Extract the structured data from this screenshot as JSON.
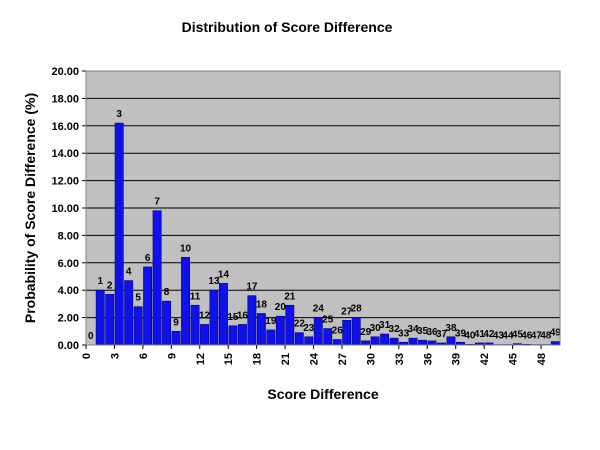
{
  "chart_data": {
    "type": "bar",
    "title": "Distribution of Score Difference",
    "xlabel": "Score Difference",
    "ylabel": "Probability of Score Difference (%)",
    "categories": [
      0,
      1,
      2,
      3,
      4,
      5,
      6,
      7,
      8,
      9,
      10,
      11,
      12,
      13,
      14,
      15,
      16,
      17,
      18,
      19,
      20,
      21,
      22,
      23,
      24,
      25,
      26,
      27,
      28,
      29,
      30,
      31,
      32,
      33,
      34,
      35,
      36,
      37,
      38,
      39,
      40,
      41,
      42,
      43,
      44,
      45,
      46,
      47,
      48,
      49
    ],
    "values": [
      0.0,
      4.0,
      3.7,
      16.2,
      4.7,
      2.8,
      5.7,
      9.8,
      3.2,
      1.0,
      6.4,
      2.9,
      1.5,
      4.0,
      4.5,
      1.4,
      1.5,
      3.6,
      2.3,
      1.1,
      2.1,
      2.9,
      0.9,
      0.6,
      2.0,
      1.2,
      0.4,
      1.8,
      2.0,
      0.3,
      0.6,
      0.8,
      0.5,
      0.2,
      0.5,
      0.35,
      0.3,
      0.15,
      0.6,
      0.2,
      0.05,
      0.15,
      0.15,
      0.03,
      0.03,
      0.1,
      0.05,
      0.03,
      0.03,
      0.25
    ],
    "data_labels": [
      "0",
      "1",
      "2",
      "3",
      "4",
      "5",
      "6",
      "7",
      "8",
      "9",
      "10",
      "11",
      "12",
      "13",
      "14",
      "15",
      "16",
      "17",
      "18",
      "19",
      "20",
      "21",
      "22",
      "23",
      "24",
      "25",
      "26",
      "27",
      "28",
      "29",
      "30",
      "31",
      "32",
      "33",
      "34",
      "35",
      "36",
      "37",
      "38",
      "39",
      "40",
      "41",
      "42",
      "43",
      "44",
      "45",
      "46",
      "47",
      "48",
      "49"
    ],
    "x_ticks": [
      "0",
      "3",
      "6",
      "9",
      "12",
      "15",
      "18",
      "21",
      "24",
      "27",
      "30",
      "33",
      "36",
      "39",
      "42",
      "45",
      "48"
    ],
    "y_ticks": [
      "0.00",
      "2.00",
      "4.00",
      "6.00",
      "8.00",
      "10.00",
      "12.00",
      "14.00",
      "16.00",
      "18.00",
      "20.00"
    ],
    "ylim": [
      0,
      20
    ],
    "grid": true,
    "legend": "none",
    "colors": {
      "bar_fill": "#1010e8",
      "bar_stroke": "#000080",
      "plot_bg": "#c0c0c0",
      "grid": "#000000"
    }
  }
}
